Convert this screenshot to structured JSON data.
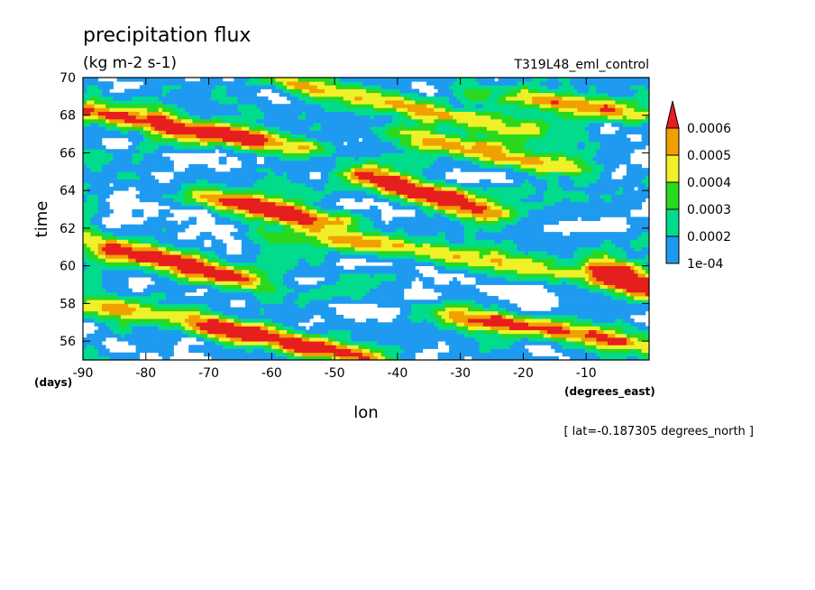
{
  "chart_data": {
    "type": "heatmap",
    "title": "precipitation flux",
    "subtitle": "(kg m-2 s-1)",
    "experiment_label": "T319L48_eml_control",
    "xlabel": "lon",
    "xunit": "(degrees_east)",
    "ylabel": "time",
    "yunit": "(days)",
    "footer": "[ lat=-0.187305 degrees_north ]",
    "xlim": [
      -90,
      0
    ],
    "ylim": [
      55,
      70
    ],
    "xticks": [
      -90,
      -80,
      -70,
      -60,
      -50,
      -40,
      -30,
      -20,
      -10
    ],
    "xtick_labels": [
      "-90",
      "-80",
      "-70",
      "-60",
      "-50",
      "-40",
      "-30",
      "-20",
      "-10"
    ],
    "yticks": [
      56,
      58,
      60,
      62,
      64,
      66,
      68,
      70
    ],
    "ytick_labels": [
      "56",
      "58",
      "60",
      "62",
      "64",
      "66",
      "68",
      "70"
    ],
    "colorbar": {
      "labels": [
        "1e-04",
        "0.0002",
        "0.0003",
        "0.0004",
        "0.0005",
        "0.0006"
      ],
      "levels": [
        0.0001,
        0.0002,
        0.0003,
        0.0004,
        0.0005,
        0.0006
      ],
      "colors": [
        "#ffffff",
        "#1e9bf0",
        "#00dc8c",
        "#2ad81e",
        "#f0f028",
        "#f0a000",
        "#e61e1e"
      ],
      "extend": "max"
    },
    "bands": [
      {
        "lon_start": -90,
        "time_start": 68.3,
        "lon_end": -55,
        "time_end": 66.2,
        "peak": 0.00065
      },
      {
        "lon_start": -70,
        "time_start": 63.6,
        "lon_end": -50,
        "time_end": 62.4,
        "peak": 0.00065
      },
      {
        "lon_start": -45,
        "time_start": 64.8,
        "lon_end": -25,
        "time_end": 62.8,
        "peak": 0.00065
      },
      {
        "lon_start": -90,
        "time_start": 61.4,
        "lon_end": -65,
        "time_end": 59.3,
        "peak": 0.0006
      },
      {
        "lon_start": -30,
        "time_start": 57.4,
        "lon_end": 0,
        "time_end": 55.7,
        "peak": 0.0006
      },
      {
        "lon_start": -68,
        "time_start": 56.7,
        "lon_end": -45,
        "time_end": 55.1,
        "peak": 0.0006
      },
      {
        "lon_start": -90,
        "time_start": 58.2,
        "lon_end": -65,
        "time_end": 56.6,
        "peak": 0.0004
      },
      {
        "lon_start": -60,
        "time_start": 70.0,
        "lon_end": -20,
        "time_end": 67.2,
        "peak": 0.00045
      },
      {
        "lon_start": -25,
        "time_start": 69.2,
        "lon_end": 0,
        "time_end": 67.9,
        "peak": 0.00045
      },
      {
        "lon_start": -60,
        "time_start": 62.0,
        "lon_end": 0,
        "time_end": 59.0,
        "peak": 0.00035
      },
      {
        "lon_start": -8,
        "time_start": 60.3,
        "lon_end": 0,
        "time_end": 58.6,
        "peak": 0.00055
      },
      {
        "lon_start": -40,
        "time_start": 67.0,
        "lon_end": -10,
        "time_end": 65.0,
        "peak": 0.0004
      }
    ]
  }
}
